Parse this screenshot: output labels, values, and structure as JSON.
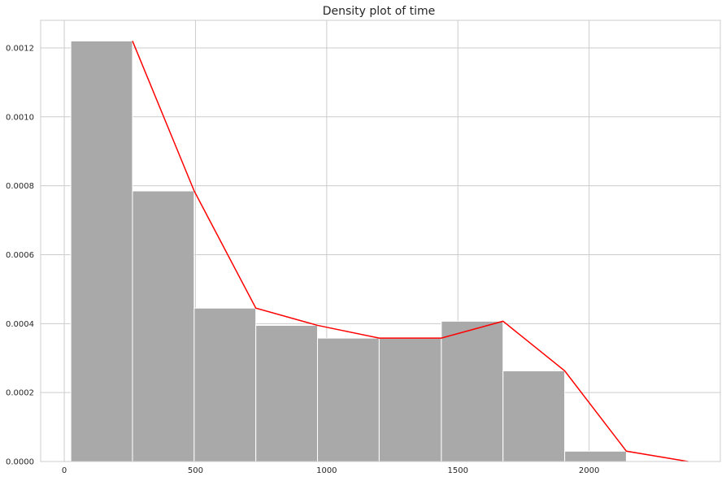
{
  "chart_data": {
    "type": "bar",
    "title": "Density plot of time",
    "xlabel": "",
    "ylabel": "",
    "xlim": [
      -90,
      2500
    ],
    "ylim": [
      0,
      0.00128
    ],
    "grid": true,
    "xticks": [
      0,
      500,
      1000,
      1500,
      2000
    ],
    "xtick_labels": [
      "0",
      "500",
      "1000",
      "1500",
      "2000"
    ],
    "yticks": [
      0,
      0.0002,
      0.0004,
      0.0006,
      0.0008,
      0.001,
      0.0012
    ],
    "ytick_labels": [
      "0.0000",
      "0.0002",
      "0.0004",
      "0.0006",
      "0.0008",
      "0.0010",
      "0.0012"
    ],
    "series": [
      {
        "name": "histogram",
        "kind": "bar",
        "color": "#a9a9a9",
        "bins": [
          {
            "start": 25,
            "end": 260,
            "value": 0.00122
          },
          {
            "start": 260,
            "end": 495,
            "value": 0.000785
          },
          {
            "start": 495,
            "end": 730,
            "value": 0.000445
          },
          {
            "start": 730,
            "end": 965,
            "value": 0.000395
          },
          {
            "start": 965,
            "end": 1200,
            "value": 0.000358
          },
          {
            "start": 1200,
            "end": 1437,
            "value": 0.000358
          },
          {
            "start": 1437,
            "end": 1672,
            "value": 0.000407
          },
          {
            "start": 1672,
            "end": 1907,
            "value": 0.000263
          },
          {
            "start": 1907,
            "end": 2142,
            "value": 3e-05
          }
        ]
      },
      {
        "name": "density line",
        "kind": "line",
        "color": "#ff0000",
        "x": [
          260,
          495,
          730,
          965,
          1200,
          1437,
          1672,
          1907,
          2142,
          2377
        ],
        "y": [
          0.00122,
          0.000785,
          0.000445,
          0.000395,
          0.000358,
          0.000358,
          0.000407,
          0.000263,
          3e-05,
          0.0
        ]
      }
    ]
  }
}
